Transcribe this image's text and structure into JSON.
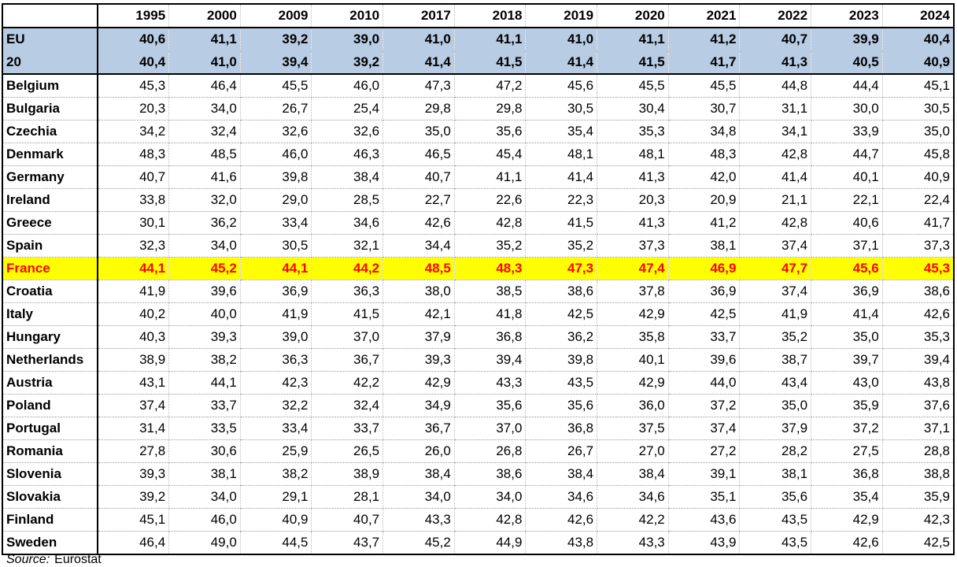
{
  "table": {
    "header": [
      1995,
      2000,
      2009,
      2010,
      2017,
      2018,
      2019,
      2020,
      2021,
      2022,
      2023,
      2024
    ],
    "aggregate_rows": [
      {
        "label": "EU",
        "values": [
          "40,6",
          "41,1",
          "39,2",
          "39,0",
          "41,0",
          "41,1",
          "41,0",
          "41,1",
          "41,2",
          "40,7",
          "39,9",
          "40,4"
        ]
      },
      {
        "label": "20",
        "values": [
          "40,4",
          "41,0",
          "39,4",
          "39,2",
          "41,4",
          "41,5",
          "41,4",
          "41,5",
          "41,7",
          "41,3",
          "40,5",
          "40,9"
        ]
      }
    ],
    "rows": [
      {
        "label": "Belgium",
        "values": [
          "45,3",
          "46,4",
          "45,5",
          "46,0",
          "47,3",
          "47,2",
          "45,6",
          "45,5",
          "45,5",
          "44,8",
          "44,4",
          "45,1"
        ]
      },
      {
        "label": "Bulgaria",
        "values": [
          "20,3",
          "34,0",
          "26,7",
          "25,4",
          "29,8",
          "29,8",
          "30,5",
          "30,4",
          "30,7",
          "31,1",
          "30,0",
          "30,5"
        ]
      },
      {
        "label": "Czechia",
        "values": [
          "34,2",
          "32,4",
          "32,6",
          "32,6",
          "35,0",
          "35,6",
          "35,4",
          "35,3",
          "34,8",
          "34,1",
          "33,9",
          "35,0"
        ]
      },
      {
        "label": "Denmark",
        "values": [
          "48,3",
          "48,5",
          "46,0",
          "46,3",
          "46,5",
          "45,4",
          "48,1",
          "48,1",
          "48,3",
          "42,8",
          "44,7",
          "45,8"
        ]
      },
      {
        "label": "Germany",
        "values": [
          "40,7",
          "41,6",
          "39,8",
          "38,4",
          "40,7",
          "41,1",
          "41,4",
          "41,3",
          "42,0",
          "41,4",
          "40,1",
          "40,9"
        ]
      },
      {
        "label": "Ireland",
        "values": [
          "33,8",
          "32,0",
          "29,0",
          "28,5",
          "22,7",
          "22,6",
          "22,3",
          "20,3",
          "20,9",
          "21,1",
          "22,1",
          "22,4"
        ]
      },
      {
        "label": "Greece",
        "values": [
          "30,1",
          "36,2",
          "33,4",
          "34,6",
          "42,6",
          "42,8",
          "41,5",
          "41,3",
          "41,2",
          "42,8",
          "40,6",
          "41,7"
        ]
      },
      {
        "label": "Spain",
        "values": [
          "32,3",
          "34,0",
          "30,5",
          "32,1",
          "34,4",
          "35,2",
          "35,2",
          "37,3",
          "38,1",
          "37,4",
          "37,1",
          "37,3"
        ]
      },
      {
        "label": "France",
        "values": [
          "44,1",
          "45,2",
          "44,1",
          "44,2",
          "48,5",
          "48,3",
          "47,3",
          "47,4",
          "46,9",
          "47,7",
          "45,6",
          "45,3"
        ]
      },
      {
        "label": "Croatia",
        "values": [
          "41,9",
          "39,6",
          "36,9",
          "36,3",
          "38,0",
          "38,5",
          "38,6",
          "37,8",
          "36,9",
          "37,4",
          "36,9",
          "38,6"
        ]
      },
      {
        "label": "Italy",
        "values": [
          "40,2",
          "40,0",
          "41,9",
          "41,5",
          "42,1",
          "41,8",
          "42,5",
          "42,9",
          "42,5",
          "41,9",
          "41,4",
          "42,6"
        ]
      },
      {
        "label": "Hungary",
        "values": [
          "40,3",
          "39,3",
          "39,0",
          "37,0",
          "37,9",
          "36,8",
          "36,2",
          "35,8",
          "33,7",
          "35,2",
          "35,0",
          "35,3"
        ]
      },
      {
        "label": "Netherlands",
        "values": [
          "38,9",
          "38,2",
          "36,3",
          "36,7",
          "39,3",
          "39,4",
          "39,8",
          "40,1",
          "39,6",
          "38,7",
          "39,7",
          "39,4"
        ]
      },
      {
        "label": "Austria",
        "values": [
          "43,1",
          "44,1",
          "42,3",
          "42,2",
          "42,9",
          "43,3",
          "43,5",
          "42,9",
          "44,0",
          "43,4",
          "43,0",
          "43,8"
        ]
      },
      {
        "label": "Poland",
        "values": [
          "37,4",
          "33,7",
          "32,2",
          "32,4",
          "34,9",
          "35,6",
          "35,6",
          "36,0",
          "37,2",
          "35,0",
          "35,9",
          "37,6"
        ]
      },
      {
        "label": "Portugal",
        "values": [
          "31,4",
          "33,5",
          "33,4",
          "33,7",
          "36,7",
          "37,0",
          "36,8",
          "37,5",
          "37,4",
          "37,9",
          "37,2",
          "37,1"
        ]
      },
      {
        "label": "Romania",
        "values": [
          "27,8",
          "30,6",
          "25,9",
          "26,5",
          "26,0",
          "26,8",
          "26,7",
          "27,0",
          "27,2",
          "28,2",
          "27,5",
          "28,8"
        ]
      },
      {
        "label": "Slovenia",
        "values": [
          "39,3",
          "38,1",
          "38,2",
          "38,9",
          "38,4",
          "38,6",
          "38,4",
          "38,4",
          "39,1",
          "38,1",
          "36,8",
          "38,8"
        ]
      },
      {
        "label": "Slovakia",
        "values": [
          "39,2",
          "34,0",
          "29,1",
          "28,1",
          "34,0",
          "34,0",
          "34,6",
          "34,6",
          "35,1",
          "35,6",
          "35,4",
          "35,9"
        ]
      },
      {
        "label": "Finland",
        "values": [
          "45,1",
          "46,0",
          "40,9",
          "40,7",
          "43,3",
          "42,8",
          "42,6",
          "42,2",
          "43,6",
          "43,5",
          "42,9",
          "42,3"
        ]
      },
      {
        "label": "Sweden",
        "values": [
          "46,4",
          "49,0",
          "44,5",
          "43,7",
          "45,2",
          "44,9",
          "43,8",
          "43,3",
          "43,9",
          "43,5",
          "42,6",
          "42,5"
        ]
      }
    ]
  },
  "source": {
    "label": "Source:",
    "text": "Eurostat"
  }
}
